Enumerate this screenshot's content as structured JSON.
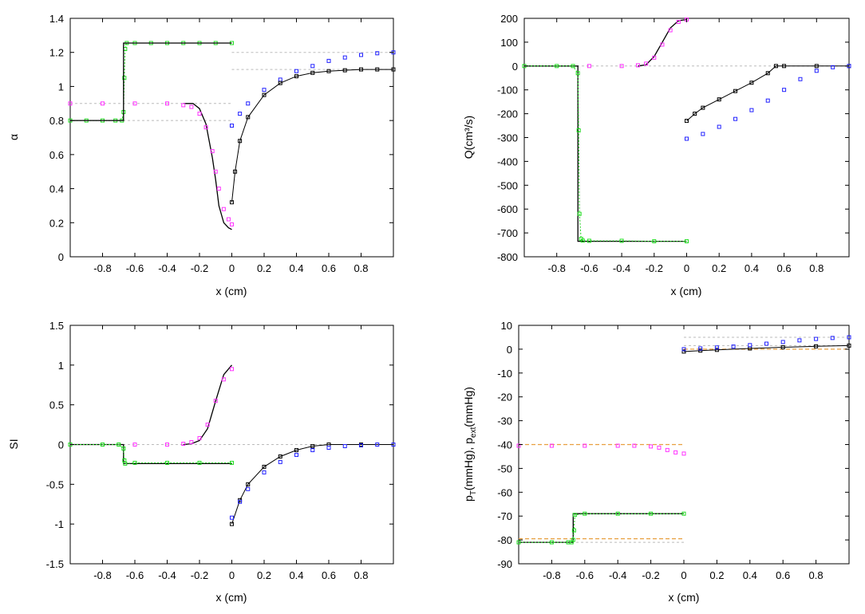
{
  "chart_data": [
    {
      "type": "line",
      "panel": "top-left",
      "xlabel": "x (cm)",
      "ylabel": "α",
      "xlim": [
        -1,
        1
      ],
      "ylim": [
        0,
        1.4
      ],
      "xticks": [
        -0.8,
        -0.6,
        -0.4,
        -0.2,
        0,
        0.2,
        0.4,
        0.6,
        0.8
      ],
      "xtick_labels": [
        "-0.8",
        "-0.6",
        "-0.4",
        "-0.2",
        "0",
        "0.2",
        "0.4",
        "0.6",
        "0.8"
      ],
      "yticks": [
        0,
        0.2,
        0.4,
        0.6,
        0.8,
        1,
        1.2,
        1.4
      ],
      "ytick_labels": [
        "0",
        "0.2",
        "0.4",
        "0.6",
        "0.8",
        "1",
        "1.2",
        "1.4"
      ],
      "reference_lines": [
        {
          "x": [
            -1,
            0
          ],
          "y": [
            0.9,
            0.9
          ],
          "color": "#bbbbbb"
        },
        {
          "x": [
            -1,
            0
          ],
          "y": [
            0.8,
            0.8
          ],
          "color": "#bbbbbb"
        },
        {
          "x": [
            0,
            1
          ],
          "y": [
            1.2,
            1.2
          ],
          "color": "#bbbbbb"
        },
        {
          "x": [
            0,
            1
          ],
          "y": [
            1.1,
            1.1
          ],
          "color": "#bbbbbb"
        }
      ],
      "series": [
        {
          "name": "exact-left",
          "color": "#000000",
          "style": "line",
          "x": [
            -0.3,
            -0.24,
            -0.2,
            -0.16,
            -0.12,
            -0.1,
            -0.08,
            -0.05,
            -0.02,
            0
          ],
          "y": [
            0.9,
            0.9,
            0.87,
            0.78,
            0.58,
            0.45,
            0.3,
            0.2,
            0.17,
            0.16
          ]
        },
        {
          "name": "green-left",
          "color": "#22dd22",
          "style": "line-markers",
          "x": [
            -1,
            -0.9,
            -0.8,
            -0.72,
            -0.68,
            -0.67,
            -0.665,
            -0.66,
            -0.65,
            -0.6,
            -0.5,
            -0.4,
            -0.3,
            -0.2,
            -0.1,
            0
          ],
          "y": [
            0.8,
            0.8,
            0.8,
            0.8,
            0.8,
            0.85,
            1.05,
            1.22,
            1.255,
            1.255,
            1.255,
            1.255,
            1.255,
            1.255,
            1.255,
            1.255
          ]
        },
        {
          "name": "exact-step",
          "color": "#000000",
          "style": "line",
          "x": [
            -1,
            -0.67,
            -0.67,
            0
          ],
          "y": [
            0.8,
            0.8,
            1.255,
            1.255
          ]
        },
        {
          "name": "magenta-left",
          "color": "#ff33ff",
          "style": "markers",
          "x": [
            -1,
            -0.8,
            -0.6,
            -0.4,
            -0.3,
            -0.25,
            -0.2,
            -0.16,
            -0.12,
            -0.1,
            -0.08,
            -0.05,
            -0.02,
            0
          ],
          "y": [
            0.9,
            0.9,
            0.9,
            0.9,
            0.89,
            0.88,
            0.84,
            0.76,
            0.62,
            0.5,
            0.4,
            0.28,
            0.22,
            0.19
          ]
        },
        {
          "name": "blue-right",
          "color": "#2222ff",
          "style": "markers",
          "x": [
            0,
            0.05,
            0.1,
            0.2,
            0.3,
            0.4,
            0.5,
            0.6,
            0.7,
            0.8,
            0.9,
            1
          ],
          "y": [
            0.77,
            0.84,
            0.9,
            0.98,
            1.04,
            1.09,
            1.12,
            1.15,
            1.17,
            1.185,
            1.195,
            1.2
          ]
        },
        {
          "name": "black-right",
          "color": "#000000",
          "style": "line-markers",
          "x": [
            0,
            0.02,
            0.05,
            0.1,
            0.2,
            0.3,
            0.4,
            0.5,
            0.6,
            0.7,
            0.8,
            0.9,
            1
          ],
          "y": [
            0.32,
            0.5,
            0.68,
            0.82,
            0.95,
            1.02,
            1.06,
            1.08,
            1.09,
            1.095,
            1.1,
            1.1,
            1.1
          ]
        }
      ]
    },
    {
      "type": "line",
      "panel": "top-right",
      "xlabel": "x (cm)",
      "ylabel": "Q(cm³/s)",
      "xlim": [
        -1,
        1
      ],
      "ylim": [
        -800,
        200
      ],
      "xticks": [
        -0.8,
        -0.6,
        -0.4,
        -0.2,
        0,
        0.2,
        0.4,
        0.6,
        0.8
      ],
      "xtick_labels": [
        "-0.8",
        "-0.6",
        "-0.4",
        "-0.2",
        "0",
        "0.2",
        "0.4",
        "0.6",
        "0.8"
      ],
      "yticks": [
        -800,
        -700,
        -600,
        -500,
        -400,
        -300,
        -200,
        -100,
        0,
        100,
        200
      ],
      "ytick_labels": [
        "-800",
        "-700",
        "-600",
        "-500",
        "-400",
        "-300",
        "-200",
        "-100",
        "0",
        "100",
        "200"
      ],
      "reference_lines": [
        {
          "x": [
            -1,
            1
          ],
          "y": [
            0,
            0
          ],
          "color": "#bbbbbb"
        }
      ],
      "series": [
        {
          "name": "exact-step",
          "color": "#000000",
          "style": "line",
          "x": [
            -1,
            -0.67,
            -0.67,
            0
          ],
          "y": [
            0,
            0,
            -735,
            -735
          ]
        },
        {
          "name": "green-left",
          "color": "#22dd22",
          "style": "line-markers",
          "x": [
            -1,
            -0.8,
            -0.7,
            -0.67,
            -0.665,
            -0.66,
            -0.65,
            -0.64,
            -0.6,
            -0.4,
            -0.2,
            0
          ],
          "y": [
            0,
            0,
            0,
            -30,
            -270,
            -620,
            -725,
            -732,
            -733,
            -733,
            -735,
            -735
          ]
        },
        {
          "name": "exact-left",
          "color": "#000000",
          "style": "line",
          "x": [
            -0.3,
            -0.25,
            -0.2,
            -0.15,
            -0.1,
            -0.05,
            0
          ],
          "y": [
            0,
            5,
            40,
            100,
            160,
            190,
            195
          ]
        },
        {
          "name": "magenta-left",
          "color": "#ff33ff",
          "style": "markers",
          "x": [
            -0.6,
            -0.4,
            -0.3,
            -0.25,
            -0.2,
            -0.15,
            -0.1,
            -0.05,
            0
          ],
          "y": [
            0,
            0,
            3,
            10,
            35,
            90,
            150,
            185,
            195
          ]
        },
        {
          "name": "black-right",
          "color": "#000000",
          "style": "line-markers",
          "x": [
            0,
            0.05,
            0.1,
            0.2,
            0.3,
            0.4,
            0.5,
            0.55,
            0.6,
            0.8,
            1
          ],
          "y": [
            -230,
            -200,
            -175,
            -140,
            -105,
            -70,
            -30,
            0,
            0,
            0,
            0
          ]
        },
        {
          "name": "blue-right",
          "color": "#2222ff",
          "style": "markers",
          "x": [
            0,
            0.1,
            0.2,
            0.3,
            0.4,
            0.5,
            0.6,
            0.7,
            0.8,
            0.9,
            1
          ],
          "y": [
            -305,
            -285,
            -255,
            -222,
            -185,
            -145,
            -100,
            -55,
            -20,
            -5,
            0
          ]
        }
      ]
    },
    {
      "type": "line",
      "panel": "bottom-left",
      "xlabel": "x (cm)",
      "ylabel": "SI",
      "xlim": [
        -1,
        1
      ],
      "ylim": [
        -1.5,
        1.5
      ],
      "xticks": [
        -0.8,
        -0.6,
        -0.4,
        -0.2,
        0,
        0.2,
        0.4,
        0.6,
        0.8
      ],
      "xtick_labels": [
        "-0.8",
        "-0.6",
        "-0.4",
        "-0.2",
        "0",
        "0.2",
        "0.4",
        "0.6",
        "0.8"
      ],
      "yticks": [
        -1.5,
        -1,
        -0.5,
        0,
        0.5,
        1,
        1.5
      ],
      "ytick_labels": [
        "-1.5",
        "-1",
        "-0.5",
        "0",
        "0.5",
        "1",
        "1.5"
      ],
      "reference_lines": [
        {
          "x": [
            -1,
            1
          ],
          "y": [
            0,
            0
          ],
          "color": "#bbbbbb"
        }
      ],
      "series": [
        {
          "name": "exact-step",
          "color": "#000000",
          "style": "line",
          "x": [
            -1,
            -0.67,
            -0.67,
            0
          ],
          "y": [
            0,
            0,
            -0.24,
            -0.24
          ]
        },
        {
          "name": "green-left",
          "color": "#22dd22",
          "style": "line-markers",
          "x": [
            -1,
            -0.8,
            -0.7,
            -0.67,
            -0.665,
            -0.66,
            -0.6,
            -0.4,
            -0.2,
            0
          ],
          "y": [
            0,
            0,
            0,
            -0.05,
            -0.2,
            -0.24,
            -0.23,
            -0.23,
            -0.23,
            -0.23
          ]
        },
        {
          "name": "exact-left",
          "color": "#000000",
          "style": "line",
          "x": [
            -0.3,
            -0.25,
            -0.2,
            -0.15,
            -0.1,
            -0.05,
            0
          ],
          "y": [
            0,
            0.01,
            0.05,
            0.2,
            0.55,
            0.88,
            1.0
          ]
        },
        {
          "name": "magenta-left",
          "color": "#ff33ff",
          "style": "markers",
          "x": [
            -0.6,
            -0.4,
            -0.3,
            -0.25,
            -0.2,
            -0.15,
            -0.1,
            -0.05,
            0
          ],
          "y": [
            0,
            0,
            0.01,
            0.03,
            0.08,
            0.25,
            0.55,
            0.82,
            0.95
          ]
        },
        {
          "name": "black-right",
          "color": "#000000",
          "style": "line-markers",
          "x": [
            0,
            0.05,
            0.1,
            0.2,
            0.3,
            0.4,
            0.5,
            0.6,
            0.8,
            1
          ],
          "y": [
            -1.0,
            -0.7,
            -0.5,
            -0.28,
            -0.15,
            -0.07,
            -0.02,
            0,
            0,
            0
          ]
        },
        {
          "name": "blue-right",
          "color": "#2222ff",
          "style": "markers",
          "x": [
            0,
            0.05,
            0.1,
            0.2,
            0.3,
            0.4,
            0.5,
            0.6,
            0.7,
            0.8,
            0.9,
            1
          ],
          "y": [
            -0.92,
            -0.72,
            -0.56,
            -0.35,
            -0.22,
            -0.13,
            -0.07,
            -0.04,
            -0.02,
            -0.01,
            0,
            0
          ]
        }
      ]
    },
    {
      "type": "line",
      "panel": "bottom-right",
      "xlabel": "x (cm)",
      "ylabel": "pT(mmHg), pext(mmHg)",
      "ylabel_parts": {
        "p1": "p",
        "s1": "T",
        "u1": "(mmHg), p",
        "s2": "ext",
        "u2": "(mmHg)"
      },
      "xlim": [
        -1,
        1
      ],
      "ylim": [
        -90,
        10
      ],
      "xticks": [
        -0.8,
        -0.6,
        -0.4,
        -0.2,
        0,
        0.2,
        0.4,
        0.6,
        0.8
      ],
      "xtick_labels": [
        "-0.8",
        "-0.6",
        "-0.4",
        "-0.2",
        "0",
        "0.2",
        "0.4",
        "0.6",
        "0.8"
      ],
      "yticks": [
        -90,
        -80,
        -70,
        -60,
        -50,
        -40,
        -30,
        -20,
        -10,
        0,
        10
      ],
      "ytick_labels": [
        "-90",
        "-80",
        "-70",
        "-60",
        "-50",
        "-40",
        "-30",
        "-20",
        "-10",
        "0",
        "10"
      ],
      "reference_lines": [
        {
          "x": [
            0,
            1
          ],
          "y": [
            5,
            5
          ],
          "color": "#bbbbbb"
        },
        {
          "x": [
            0,
            1
          ],
          "y": [
            1.5,
            1.5
          ],
          "color": "#bbbbbb"
        },
        {
          "x": [
            -1,
            0
          ],
          "y": [
            -81,
            -81
          ],
          "color": "#bbbbbb"
        },
        {
          "x": [
            0,
            1
          ],
          "y": [
            0,
            0
          ],
          "color": "#e8a040",
          "dashed": true
        },
        {
          "x": [
            -1,
            0
          ],
          "y": [
            -40,
            -40
          ],
          "color": "#e8a040",
          "dashed": true
        },
        {
          "x": [
            -1,
            0
          ],
          "y": [
            -79.5,
            -79.5
          ],
          "color": "#e8a040",
          "dashed": true
        }
      ],
      "series": [
        {
          "name": "exact-step",
          "color": "#000000",
          "style": "line",
          "x": [
            -1,
            -0.67,
            -0.67,
            0
          ],
          "y": [
            -81,
            -81,
            -69,
            -69
          ]
        },
        {
          "name": "green-left",
          "color": "#22dd22",
          "style": "line-markers",
          "x": [
            -1,
            -0.8,
            -0.7,
            -0.68,
            -0.67,
            -0.665,
            -0.66,
            -0.6,
            -0.4,
            -0.2,
            0
          ],
          "y": [
            -81,
            -81,
            -81,
            -81,
            -80,
            -76,
            -69.5,
            -69,
            -69,
            -69,
            -69
          ]
        },
        {
          "name": "magenta-left",
          "color": "#ff33ff",
          "style": "markers",
          "x": [
            -1,
            -0.8,
            -0.6,
            -0.4,
            -0.3,
            -0.2,
            -0.15,
            -0.1,
            -0.05,
            0
          ],
          "y": [
            -40.5,
            -40.5,
            -40.5,
            -40.5,
            -40.5,
            -40.8,
            -41.3,
            -42.3,
            -43.3,
            -43.8
          ]
        },
        {
          "name": "black-right",
          "color": "#000000",
          "style": "line-markers",
          "x": [
            0,
            0.1,
            0.2,
            0.4,
            0.6,
            0.8,
            1
          ],
          "y": [
            -1,
            -0.6,
            -0.3,
            0.3,
            0.8,
            1.2,
            1.5
          ]
        },
        {
          "name": "blue-right",
          "color": "#2222ff",
          "style": "markers",
          "x": [
            0,
            0.1,
            0.2,
            0.3,
            0.4,
            0.5,
            0.6,
            0.7,
            0.8,
            0.9,
            1
          ],
          "y": [
            0,
            0.3,
            0.7,
            1.1,
            1.7,
            2.3,
            3,
            3.7,
            4.3,
            4.7,
            5
          ]
        }
      ]
    }
  ]
}
